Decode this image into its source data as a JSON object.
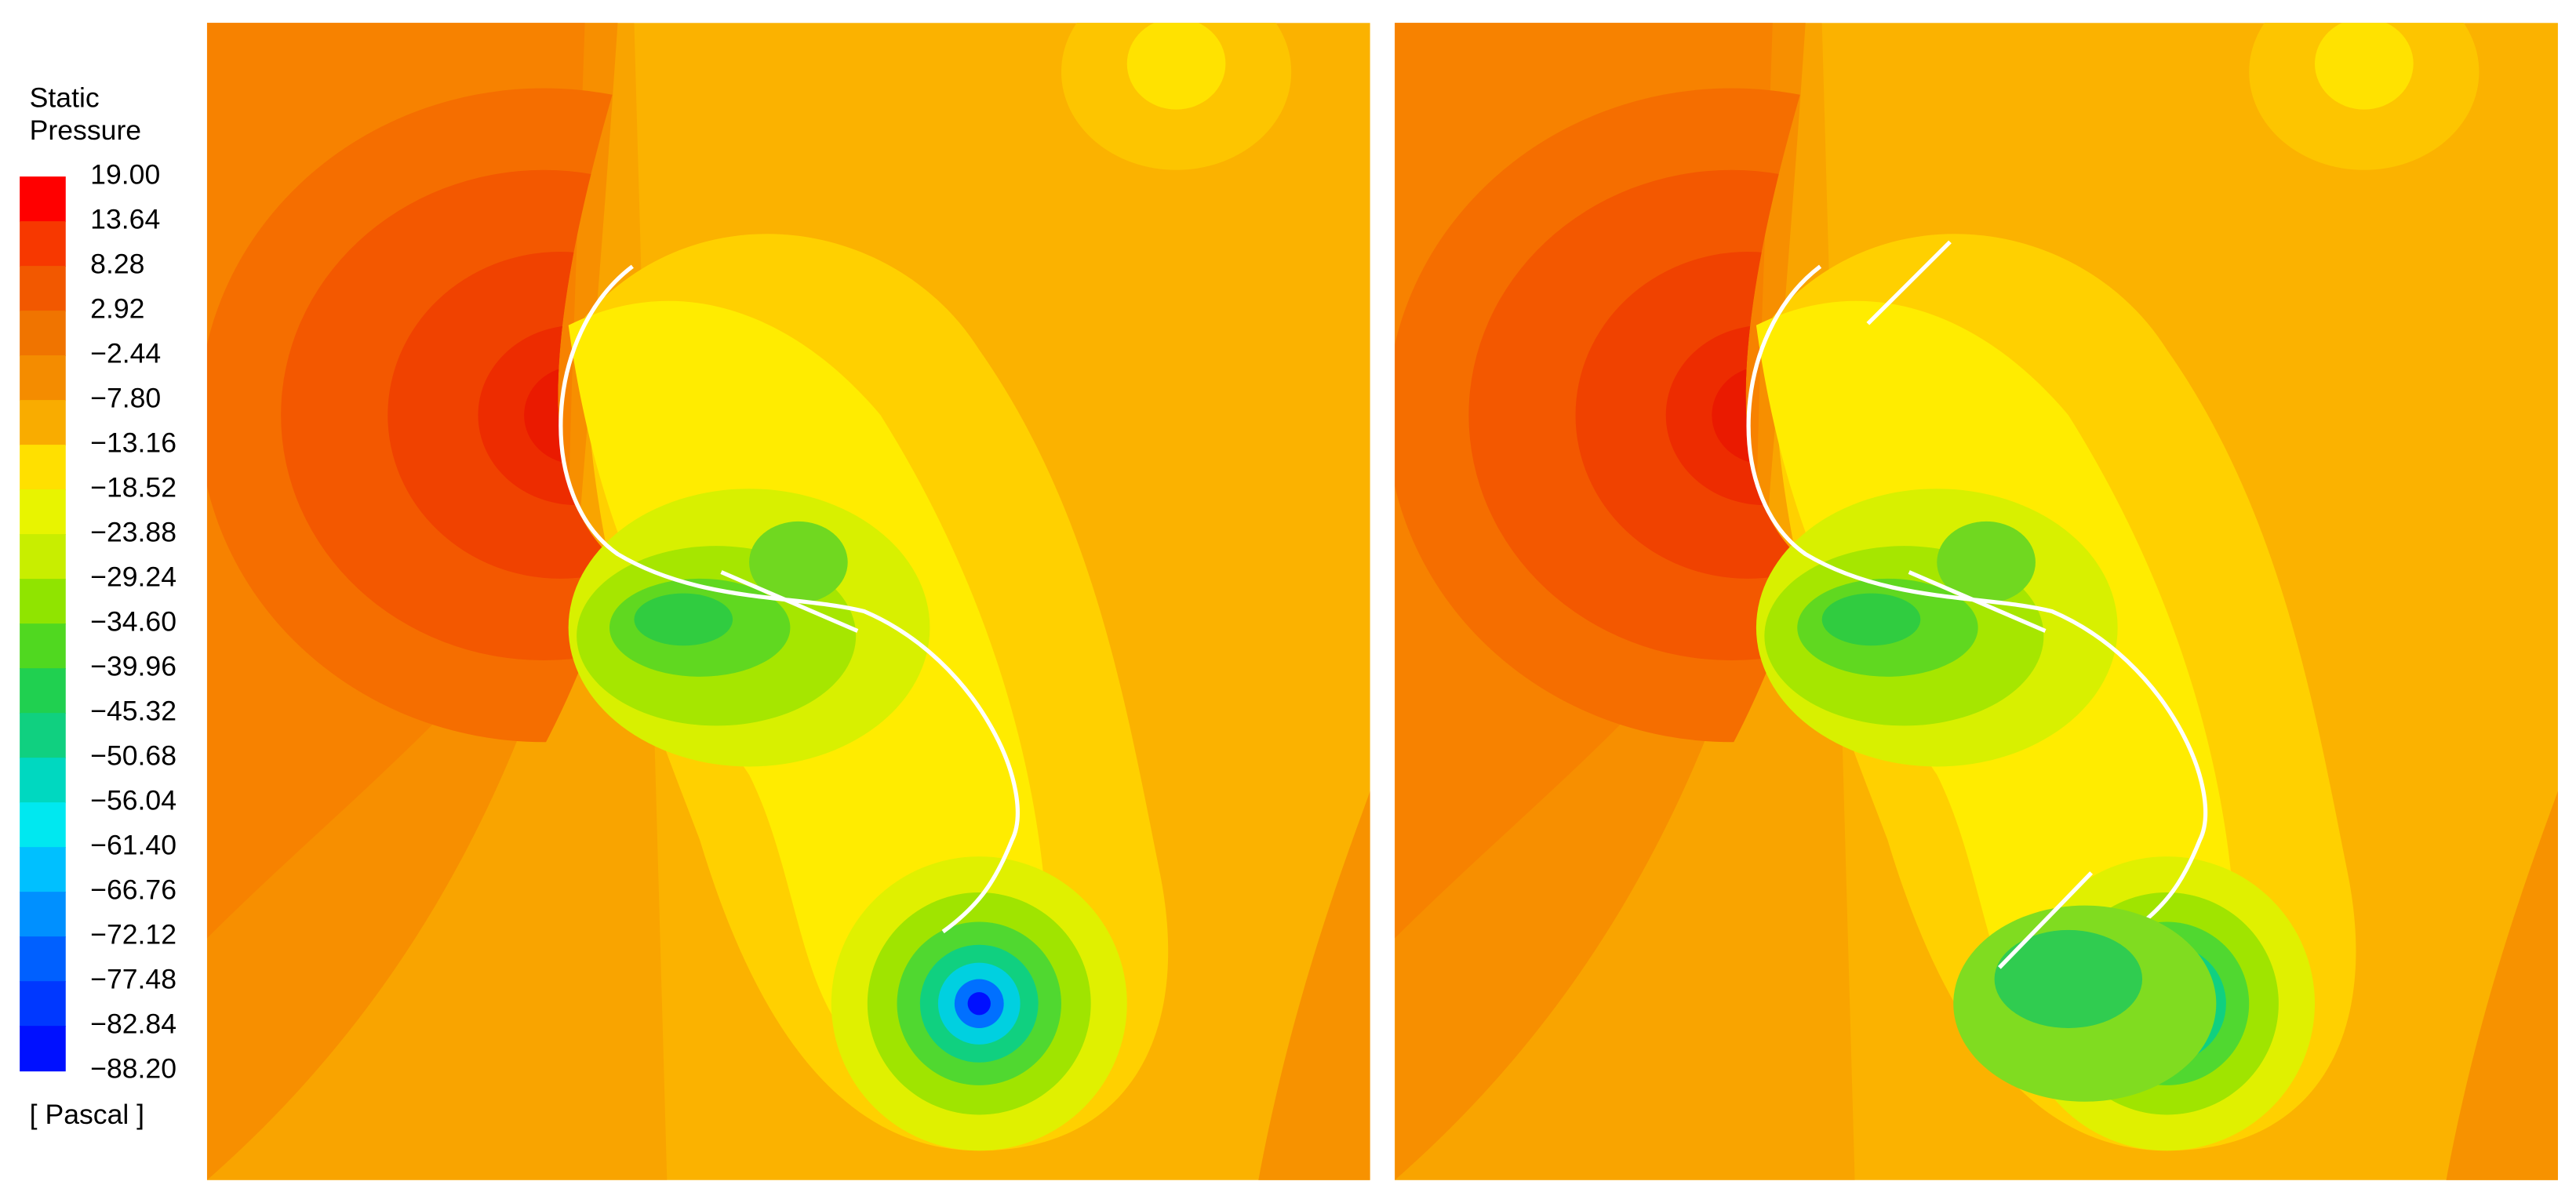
{
  "legend": {
    "title": [
      "Static",
      "Pressure"
    ],
    "labels": [
      "19.00",
      "13.64",
      "8.28",
      "2.92",
      "−2.44",
      "−7.80",
      "−13.16",
      "−18.52",
      "−23.88",
      "−29.24",
      "−34.60",
      "−39.96",
      "−45.32",
      "−50.68",
      "−56.04",
      "−61.40",
      "−66.76",
      "−72.12",
      "−77.48",
      "−82.84",
      "−88.20"
    ],
    "units": "[ Pascal ]"
  }
}
